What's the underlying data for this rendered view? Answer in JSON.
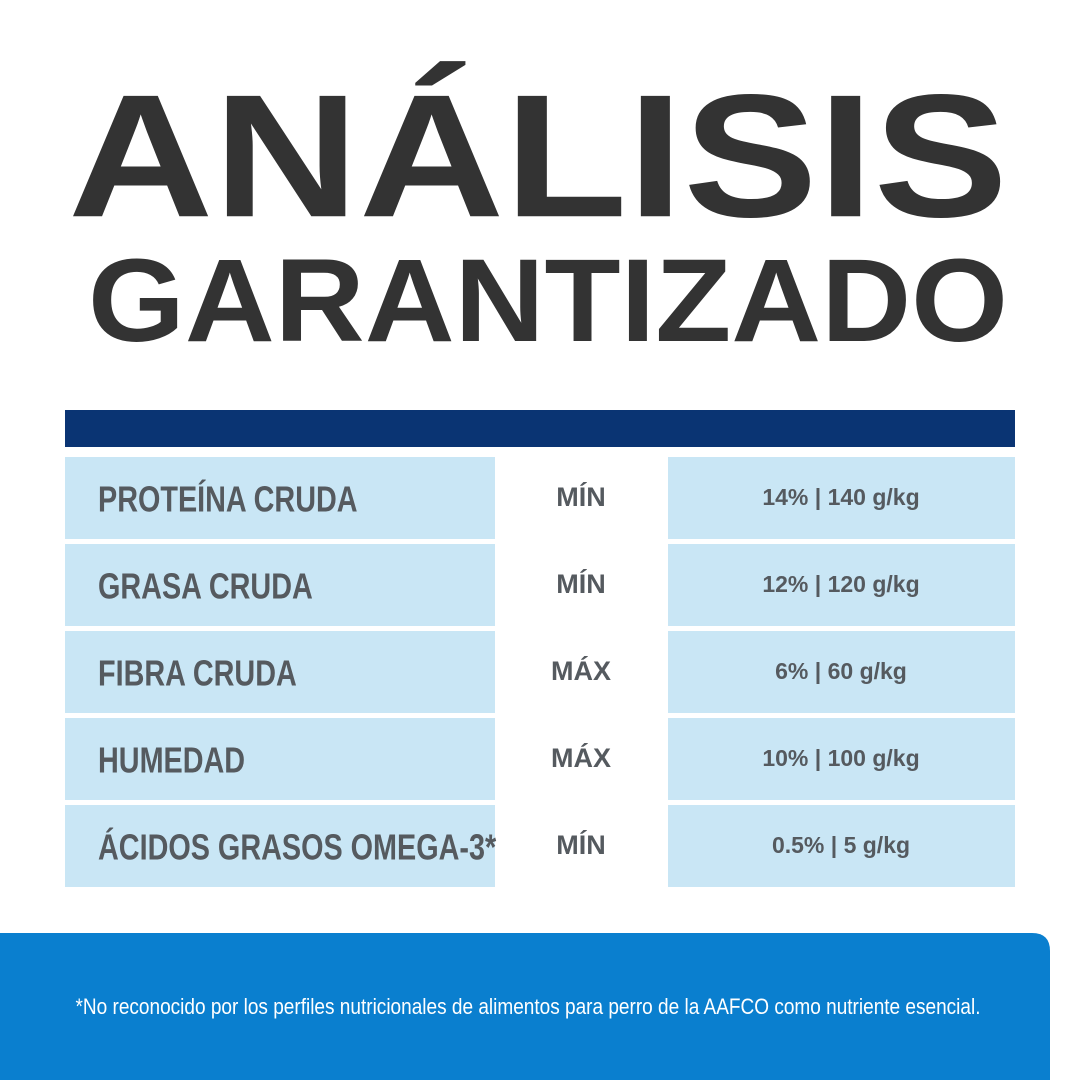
{
  "header": {
    "title_line1": "ANÁLISIS",
    "title_line2": "GARANTIZADO"
  },
  "table": {
    "rows": [
      [
        "PROTEÍNA CRUDA",
        "MÍN",
        "14% | 140 g/kg"
      ],
      [
        "GRASA CRUDA",
        "MÍN",
        "12% | 120 g/kg"
      ],
      [
        "FIBRA CRUDA",
        "MÁX",
        "6% | 60 g/kg"
      ],
      [
        "HUMEDAD",
        "MÁX",
        "10% | 100 g/kg"
      ],
      [
        "ÁCIDOS GRASOS OMEGA-3*",
        "MÍN",
        "0.5% | 5 g/kg"
      ]
    ]
  },
  "footnote": "*No reconocido por los perfiles nutricionales de alimentos para perro de la AAFCO como nutriente esencial."
}
